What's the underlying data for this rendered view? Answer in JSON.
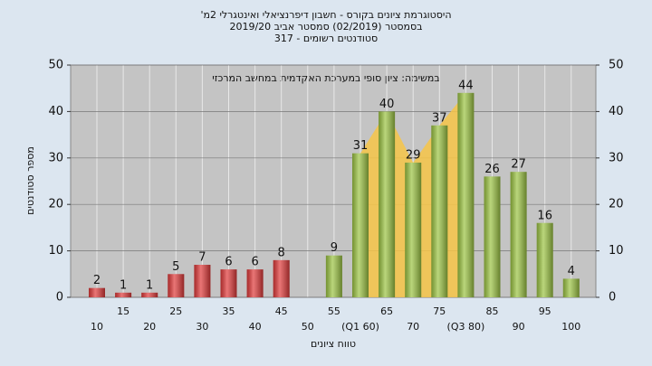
{
  "chart_data": {
    "type": "bar",
    "title": "היסטוגרמת ציונים בקורס - חשבון דיפרנציאלי ואינטגרלי 2מ'",
    "subtitle": "בסמסטר (02/2019)  סמסטר אביב 2019/20",
    "subtitle2": "סטודנטים רשומים - 317",
    "annotation": "במשימה: ציון סופי במערכת האקדמית במחשב המרכזי",
    "x_label": "טווח ציונים",
    "y_label": "מספר סטודנטים",
    "categories": [
      "10",
      "15",
      "20",
      "25",
      "30",
      "35",
      "40",
      "45",
      "50",
      "55",
      "(Q1 60)",
      "65",
      "70",
      "75",
      "(Q3 80)",
      "85",
      "90",
      "95",
      "100"
    ],
    "values": [
      2,
      1,
      1,
      5,
      7,
      6,
      6,
      8,
      null,
      9,
      31,
      40,
      29,
      37,
      44,
      26,
      27,
      16,
      4
    ],
    "colors": [
      "#e03a3a",
      "#e03a3a",
      "#e03a3a",
      "#e03a3a",
      "#e03a3a",
      "#e03a3a",
      "#e03a3a",
      "#e03a3a",
      "#e03a3a",
      "#9cc443",
      "#9cc443",
      "#9cc443",
      "#9cc443",
      "#9cc443",
      "#9cc443",
      "#9cc443",
      "#9cc443",
      "#9cc443",
      "#9cc443"
    ],
    "band_color": "#f7c548",
    "ylim": [
      0,
      50
    ],
    "yticks": [
      0,
      10,
      20,
      30,
      40,
      50
    ],
    "grid": true
  }
}
